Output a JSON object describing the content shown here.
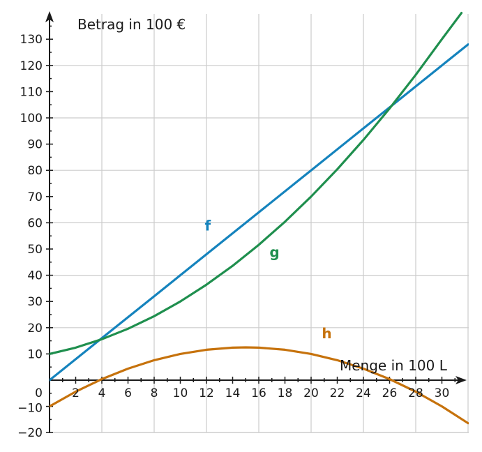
{
  "chart_data": {
    "type": "line",
    "xlabel": "Menge in 100 L",
    "ylabel": "Betrag in 100 €",
    "xlim": [
      0,
      32
    ],
    "ylim": [
      -20,
      140
    ],
    "x_ticks": [
      2,
      4,
      6,
      8,
      10,
      12,
      14,
      16,
      18,
      20,
      22,
      24,
      26,
      28,
      30
    ],
    "y_ticks": [
      -20,
      -10,
      0,
      10,
      20,
      30,
      40,
      50,
      60,
      70,
      80,
      90,
      100,
      110,
      120,
      130
    ],
    "grid": true,
    "series": [
      {
        "name": "f",
        "color": "#1583bd",
        "x": [
          0,
          4,
          8,
          12,
          16,
          20,
          24,
          26,
          28,
          32
        ],
        "y": [
          0,
          16,
          32,
          48,
          64,
          80,
          96,
          104,
          112,
          128
        ]
      },
      {
        "name": "g",
        "color": "#1f8f4e",
        "x": [
          0,
          2,
          4,
          6,
          8,
          10,
          12,
          14,
          16,
          18,
          20,
          22,
          24,
          26,
          28,
          30,
          31.5
        ],
        "y": [
          10,
          12.4,
          15.6,
          19.6,
          24.4,
          30,
          36.4,
          43.6,
          51.6,
          60.4,
          70,
          80.4,
          91.6,
          103.6,
          116.4,
          130,
          140
        ]
      },
      {
        "name": "h",
        "color": "#c6720c",
        "x": [
          0,
          2,
          4,
          6,
          8,
          10,
          12,
          14,
          15,
          16,
          18,
          20,
          22,
          24,
          26,
          28,
          30,
          32
        ],
        "y": [
          -10,
          -4.4,
          0.4,
          4.4,
          7.6,
          10,
          11.6,
          12.4,
          12.5,
          12.4,
          11.6,
          10,
          7.6,
          4.4,
          0.4,
          -4.4,
          -10,
          -16.4
        ]
      }
    ],
    "series_labels": [
      {
        "text": "f",
        "x": 12.1,
        "y": 57
      },
      {
        "text": "g",
        "x": 17.2,
        "y": 47
      },
      {
        "text": "h",
        "x": 21.2,
        "y": 16
      }
    ]
  }
}
